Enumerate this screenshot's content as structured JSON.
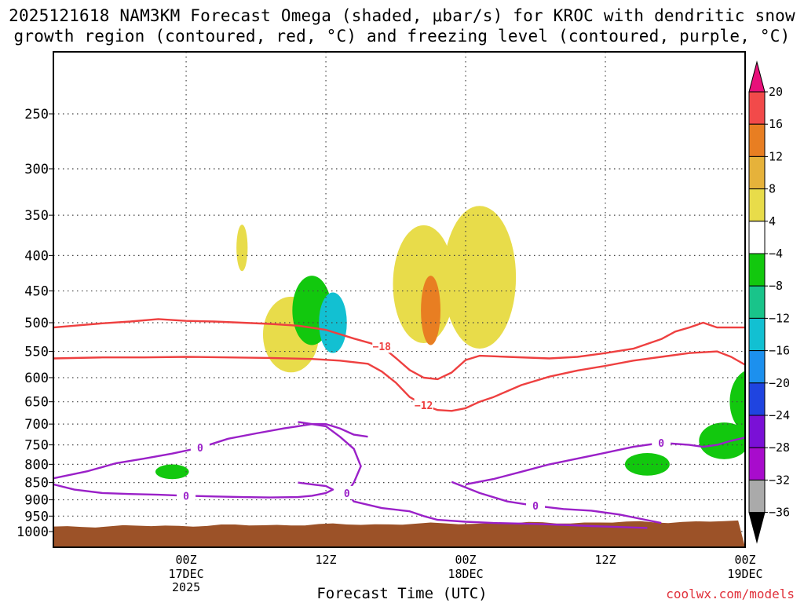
{
  "title_line1": "2025121618 NAM3KM Forecast Omega (shaded, μbar/s) for KROC with dendritic snow",
  "title_line2": "growth region (contoured, red, °C) and freezing level (contoured, purple, °C)",
  "credit": "coolwx.com/models",
  "chart_data": {
    "type": "time-height",
    "title": "2025121618 NAM3KM Forecast Omega (shaded, μbar/s) for KROC with dendritic snow growth region (contoured, red, °C) and freezing level (contoured, purple, °C)",
    "xlabel": "Forecast Time (UTC)",
    "ylabel": "Pressure (hPa)",
    "x_range_hours": [
      -9.5,
      40
    ],
    "ylim": [
      1000,
      200
    ],
    "y_ticks": [
      250,
      300,
      350,
      400,
      450,
      500,
      550,
      600,
      650,
      700,
      750,
      800,
      850,
      900,
      950,
      1000
    ],
    "x_ticks": [
      {
        "hour": 0,
        "label": "00Z",
        "date": "17DEC",
        "year": "2025"
      },
      {
        "hour": 10,
        "label": "12Z",
        "date": "",
        "year": ""
      },
      {
        "hour": 20,
        "label": "00Z",
        "date": "18DEC",
        "year": ""
      },
      {
        "hour": 30,
        "label": "12Z",
        "date": "",
        "year": ""
      },
      {
        "hour": 40,
        "label": "00Z",
        "date": "19DEC",
        "year": ""
      }
    ],
    "colorbar": {
      "levels": [
        "20",
        "16",
        "12",
        "8",
        "4",
        "−4",
        "−8",
        "−12",
        "−16",
        "−20",
        "−24",
        "−28",
        "−32",
        "−36"
      ],
      "colors": [
        "#f24a4a",
        "#e87e22",
        "#e6b23a",
        "#e8dc4a",
        "#ffffff",
        "#12c80e",
        "#19c48a",
        "#12c0d2",
        "#1c90ee",
        "#1f44e0",
        "#7a10d6",
        "#a80ccc",
        "#aaaaaa"
      ],
      "top_color": "#e8107a",
      "bottom_color": "#000000"
    },
    "contours": [
      {
        "name": "dendritic -18C",
        "color": "#ee4040",
        "label": "−18",
        "points": [
          [
            -9.5,
            508
          ],
          [
            -8,
            505
          ],
          [
            -6,
            501
          ],
          [
            -4,
            498
          ],
          [
            -2,
            494
          ],
          [
            0,
            497
          ],
          [
            2,
            498
          ],
          [
            4,
            500
          ],
          [
            6,
            502
          ],
          [
            8,
            505
          ],
          [
            10,
            512
          ],
          [
            12,
            527
          ],
          [
            14,
            541
          ],
          [
            15,
            562
          ],
          [
            16,
            585
          ],
          [
            17,
            600
          ],
          [
            18,
            603
          ],
          [
            19,
            590
          ],
          [
            20,
            566
          ],
          [
            21,
            558
          ],
          [
            23,
            560
          ],
          [
            26,
            563
          ],
          [
            28,
            560
          ],
          [
            30,
            553
          ],
          [
            32,
            545
          ],
          [
            34,
            528
          ],
          [
            35,
            515
          ],
          [
            36,
            508
          ],
          [
            37,
            500
          ],
          [
            38,
            508
          ],
          [
            40,
            508
          ],
          [
            42,
            500
          ],
          [
            44,
            497
          ],
          [
            46,
            498
          ],
          [
            47,
            503
          ],
          [
            48,
            502
          ]
        ]
      },
      {
        "name": "dendritic -12C",
        "color": "#ee4040",
        "label": "−12",
        "points": [
          [
            -9.5,
            563
          ],
          [
            -6,
            561
          ],
          [
            -3,
            561
          ],
          [
            0,
            560
          ],
          [
            3,
            561
          ],
          [
            6,
            562
          ],
          [
            9,
            564
          ],
          [
            11,
            567
          ],
          [
            13,
            573
          ],
          [
            14,
            588
          ],
          [
            15,
            610
          ],
          [
            16,
            640
          ],
          [
            17,
            657
          ],
          [
            18,
            668
          ],
          [
            19,
            670
          ],
          [
            20,
            664
          ],
          [
            21,
            650
          ],
          [
            22,
            640
          ],
          [
            24,
            615
          ],
          [
            26,
            598
          ],
          [
            28,
            586
          ],
          [
            30,
            577
          ],
          [
            32,
            567
          ],
          [
            34,
            560
          ],
          [
            36,
            553
          ],
          [
            38,
            550
          ],
          [
            39,
            560
          ],
          [
            40,
            575
          ],
          [
            41,
            570
          ],
          [
            42,
            578
          ],
          [
            43,
            563
          ],
          [
            44,
            558
          ],
          [
            45,
            562
          ],
          [
            46,
            560
          ],
          [
            48,
            563
          ]
        ]
      },
      {
        "name": "freezing level 0C",
        "color": "#9a20c8",
        "label": "0",
        "points": [
          [
            8,
            695
          ],
          [
            10,
            705
          ],
          [
            11,
            730
          ],
          [
            12,
            760
          ],
          [
            12.5,
            805
          ],
          [
            12,
            850
          ],
          [
            11.5,
            880
          ],
          [
            12,
            905
          ],
          [
            14,
            925
          ],
          [
            16,
            935
          ],
          [
            17,
            950
          ],
          [
            18,
            962
          ],
          [
            20,
            968
          ],
          [
            22,
            972
          ],
          [
            25,
            975
          ],
          [
            27,
            978
          ],
          [
            29,
            982
          ],
          [
            31,
            985
          ],
          [
            33,
            988
          ]
        ]
      },
      {
        "name": "freezing level 0C lower",
        "color": "#9a20c8",
        "label": "0",
        "points": [
          [
            -9.5,
            855
          ],
          [
            -8,
            870
          ],
          [
            -6,
            880
          ],
          [
            -4,
            883
          ],
          [
            -2,
            885
          ],
          [
            0,
            888
          ],
          [
            2,
            890
          ],
          [
            4,
            892
          ],
          [
            6,
            893
          ],
          [
            8,
            892
          ],
          [
            9,
            888
          ],
          [
            10,
            880
          ],
          [
            10.5,
            870
          ],
          [
            10,
            860
          ],
          [
            9,
            855
          ],
          [
            8,
            850
          ]
        ]
      },
      {
        "name": "freezing level 0C upper left",
        "color": "#9a20c8",
        "label": "0",
        "points": [
          [
            -9.5,
            838
          ],
          [
            -7,
            818
          ],
          [
            -5,
            797
          ],
          [
            -3,
            785
          ],
          [
            -1,
            772
          ],
          [
            1,
            757
          ],
          [
            3,
            735
          ],
          [
            5,
            722
          ],
          [
            7,
            710
          ],
          [
            8,
            705
          ],
          [
            9,
            700
          ],
          [
            10,
            700
          ],
          [
            11,
            710
          ],
          [
            12,
            725
          ],
          [
            13,
            730
          ]
        ]
      },
      {
        "name": "freezing level 0C right",
        "color": "#9a20c8",
        "label": "0",
        "points": [
          [
            20,
            855
          ],
          [
            22,
            840
          ],
          [
            24,
            820
          ],
          [
            26,
            800
          ],
          [
            28,
            785
          ],
          [
            30,
            770
          ],
          [
            32,
            755
          ],
          [
            34,
            745
          ],
          [
            36,
            750
          ],
          [
            37,
            755
          ],
          [
            38,
            750
          ],
          [
            39,
            740
          ],
          [
            40,
            732
          ],
          [
            41,
            728
          ],
          [
            42,
            722
          ],
          [
            43,
            712
          ],
          [
            44,
            705
          ],
          [
            45,
            712
          ],
          [
            46,
            725
          ],
          [
            47,
            735
          ],
          [
            48,
            728
          ]
        ]
      },
      {
        "name": "freezing level 0C mid-low",
        "color": "#9a20c8",
        "label": "0",
        "points": [
          [
            19,
            848
          ],
          [
            21,
            880
          ],
          [
            23,
            905
          ],
          [
            25,
            918
          ],
          [
            27,
            928
          ],
          [
            29,
            933
          ],
          [
            31,
            945
          ],
          [
            33,
            963
          ],
          [
            34,
            972
          ]
        ]
      }
    ],
    "omega_blobs": [
      {
        "center": [
          -1,
          820
        ],
        "size": [
          1.2,
          40
        ],
        "color": "#12c80e"
      },
      {
        "center": [
          4,
          390
        ],
        "size": [
          0.4,
          60
        ],
        "color": "#e8dc4a"
      },
      {
        "center": [
          7.5,
          520
        ],
        "size": [
          2,
          130
        ],
        "color": "#e8dc4a"
      },
      {
        "center": [
          9,
          480
        ],
        "size": [
          1.4,
          110
        ],
        "color": "#12c80e"
      },
      {
        "center": [
          10.5,
          500
        ],
        "size": [
          1,
          100
        ],
        "color": "#12c0d2"
      },
      {
        "center": [
          17,
          440
        ],
        "size": [
          2.2,
          170
        ],
        "color": "#e8dc4a"
      },
      {
        "center": [
          17.5,
          480
        ],
        "size": [
          0.7,
          110
        ],
        "color": "#e87e22"
      },
      {
        "center": [
          21,
          430
        ],
        "size": [
          2.6,
          200
        ],
        "color": "#e8dc4a"
      },
      {
        "center": [
          33,
          800
        ],
        "size": [
          1.6,
          60
        ],
        "color": "#12c80e"
      },
      {
        "center": [
          38.5,
          740
        ],
        "size": [
          1.8,
          90
        ],
        "color": "#12c80e"
      },
      {
        "center": [
          40.5,
          650
        ],
        "size": [
          1.6,
          140
        ],
        "color": "#12c80e"
      },
      {
        "center": [
          41,
          640
        ],
        "size": [
          0.8,
          100
        ],
        "color": "#1f44e0"
      },
      {
        "center": [
          43,
          500
        ],
        "size": [
          1.5,
          220
        ],
        "color": "#12c80e"
      }
    ]
  }
}
